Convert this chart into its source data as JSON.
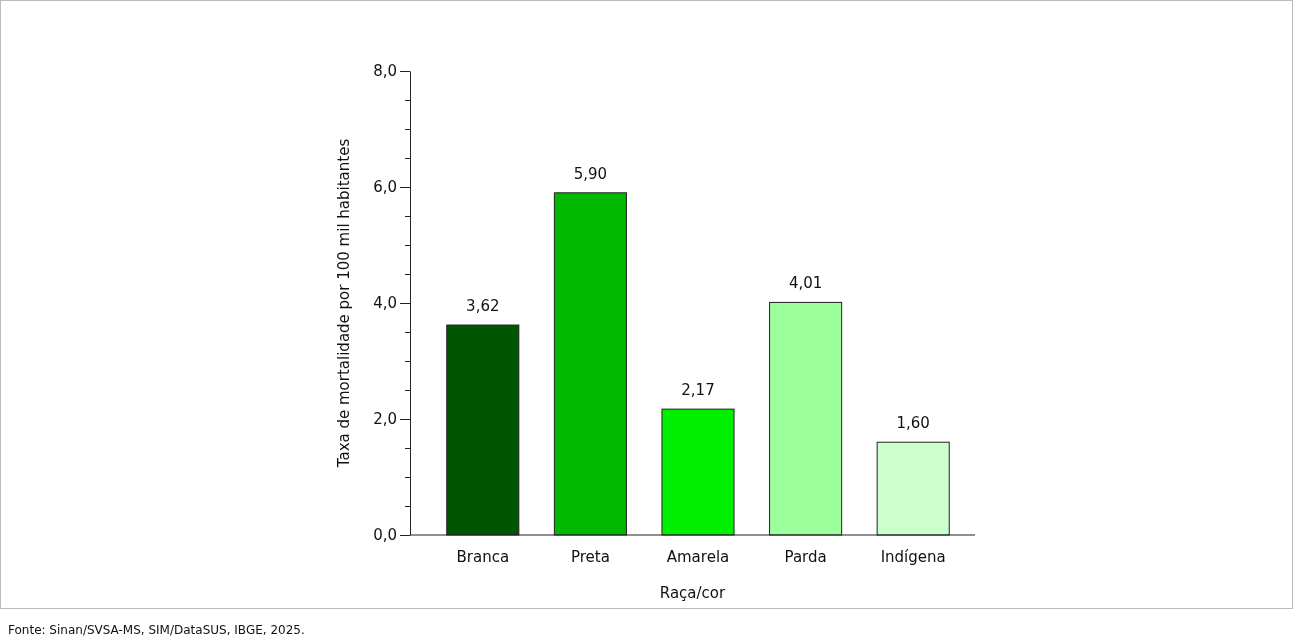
{
  "chart_data": {
    "type": "bar",
    "xlabel": "Raça/cor",
    "ylabel": "Taxa de mortalidade por 100 mil habitantes",
    "categories": [
      "Branca",
      "Preta",
      "Amarela",
      "Parda",
      "Indígena"
    ],
    "values": [
      3.62,
      5.9,
      2.17,
      4.01,
      1.6
    ],
    "colors": [
      "#005500",
      "#00b800",
      "#00f000",
      "#9cff9c",
      "#ccffcc"
    ],
    "value_labels": [
      "3,62",
      "5,90",
      "2,17",
      "4,01",
      "1,60"
    ],
    "ylim": [
      0,
      8
    ],
    "yticks": [
      {
        "value": 0,
        "label": "0,0"
      },
      {
        "value": 0.5,
        "label": null
      },
      {
        "value": 1,
        "label": null
      },
      {
        "value": 1.5,
        "label": null
      },
      {
        "value": 2,
        "label": "2,0"
      },
      {
        "value": 2.5,
        "label": null
      },
      {
        "value": 3,
        "label": null
      },
      {
        "value": 3.5,
        "label": null
      },
      {
        "value": 4,
        "label": "4,0"
      },
      {
        "value": 4.5,
        "label": null
      },
      {
        "value": 5,
        "label": null
      },
      {
        "value": 5.5,
        "label": null
      },
      {
        "value": 6,
        "label": "6,0"
      },
      {
        "value": 6.5,
        "label": null
      },
      {
        "value": 7,
        "label": null
      },
      {
        "value": 7.5,
        "label": null
      },
      {
        "value": 8,
        "label": "8,0"
      }
    ],
    "grid": false,
    "annotations": [
      "Fonte: Sinan/SVSA-MS, SIM/DataSUS, IBGE, 2025."
    ]
  }
}
